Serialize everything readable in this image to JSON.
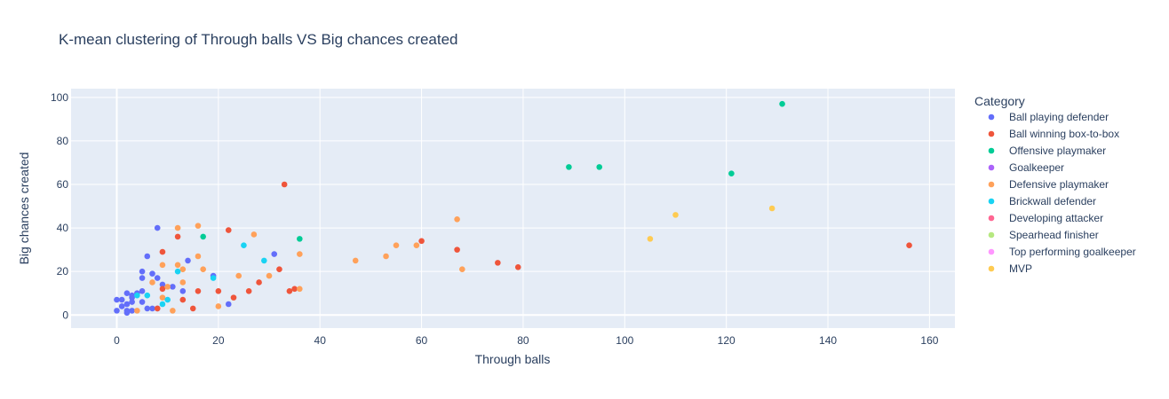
{
  "chart_data": {
    "type": "scatter",
    "title": "K-mean clustering of Through balls VS Big chances created",
    "xlabel": "Through balls",
    "ylabel": "Big chances created",
    "xlim": [
      -9,
      165
    ],
    "ylim": [
      -6,
      104
    ],
    "xticks": [
      0,
      20,
      40,
      60,
      80,
      100,
      120,
      140,
      160
    ],
    "yticks": [
      0,
      20,
      40,
      60,
      80,
      100
    ],
    "grid": true,
    "legend_title": "Category",
    "legend_position": "right",
    "series": [
      {
        "name": "Ball playing defender",
        "color": "#636efa",
        "points": [
          [
            0,
            2
          ],
          [
            0,
            7
          ],
          [
            1,
            4
          ],
          [
            1,
            7
          ],
          [
            2,
            1
          ],
          [
            2,
            2
          ],
          [
            2,
            5
          ],
          [
            2,
            10
          ],
          [
            3,
            2
          ],
          [
            3,
            6
          ],
          [
            3,
            8
          ],
          [
            3,
            9
          ],
          [
            4,
            10
          ],
          [
            5,
            6
          ],
          [
            5,
            11
          ],
          [
            5,
            17
          ],
          [
            5,
            20
          ],
          [
            6,
            3
          ],
          [
            6,
            27
          ],
          [
            7,
            3
          ],
          [
            7,
            19
          ],
          [
            8,
            3
          ],
          [
            8,
            17
          ],
          [
            8,
            40
          ],
          [
            9,
            14
          ],
          [
            11,
            13
          ],
          [
            13,
            11
          ],
          [
            14,
            25
          ],
          [
            19,
            18
          ],
          [
            22,
            5
          ],
          [
            31,
            28
          ]
        ]
      },
      {
        "name": "Ball winning box-to-box",
        "color": "#ef553b",
        "points": [
          [
            8,
            3
          ],
          [
            9,
            12
          ],
          [
            9,
            29
          ],
          [
            12,
            36
          ],
          [
            13,
            7
          ],
          [
            15,
            3
          ],
          [
            16,
            11
          ],
          [
            20,
            11
          ],
          [
            22,
            39
          ],
          [
            23,
            8
          ],
          [
            26,
            11
          ],
          [
            28,
            15
          ],
          [
            32,
            21
          ],
          [
            33,
            60
          ],
          [
            34,
            11
          ],
          [
            35,
            12
          ],
          [
            60,
            34
          ],
          [
            67,
            30
          ],
          [
            75,
            24
          ],
          [
            79,
            22
          ],
          [
            156,
            32
          ]
        ]
      },
      {
        "name": "Offensive playmaker",
        "color": "#00cc96",
        "points": [
          [
            17,
            36
          ],
          [
            36,
            35
          ],
          [
            89,
            68
          ],
          [
            95,
            68
          ],
          [
            121,
            65
          ],
          [
            131,
            97
          ]
        ]
      },
      {
        "name": "Goalkeeper",
        "color": "#ab63fa",
        "points": []
      },
      {
        "name": "Defensive playmaker",
        "color": "#ffa15a",
        "points": [
          [
            4,
            2
          ],
          [
            7,
            15
          ],
          [
            9,
            8
          ],
          [
            9,
            23
          ],
          [
            10,
            13
          ],
          [
            11,
            2
          ],
          [
            12,
            23
          ],
          [
            12,
            40
          ],
          [
            13,
            15
          ],
          [
            13,
            21
          ],
          [
            16,
            27
          ],
          [
            16,
            41
          ],
          [
            17,
            21
          ],
          [
            20,
            4
          ],
          [
            24,
            18
          ],
          [
            27,
            37
          ],
          [
            30,
            18
          ],
          [
            36,
            12
          ],
          [
            36,
            28
          ],
          [
            47,
            25
          ],
          [
            53,
            27
          ],
          [
            55,
            32
          ],
          [
            59,
            32
          ],
          [
            67,
            44
          ],
          [
            68,
            21
          ]
        ]
      },
      {
        "name": "Brickwall defender",
        "color": "#19d3f3",
        "points": [
          [
            4,
            9
          ],
          [
            6,
            9
          ],
          [
            9,
            5
          ],
          [
            10,
            7
          ],
          [
            12,
            20
          ],
          [
            19,
            17
          ],
          [
            25,
            32
          ],
          [
            29,
            25
          ]
        ]
      },
      {
        "name": "Developing attacker",
        "color": "#ff6692",
        "points": []
      },
      {
        "name": "Spearhead finisher",
        "color": "#b6e880",
        "points": []
      },
      {
        "name": "Top performing goalkeeper",
        "color": "#ff97ff",
        "points": []
      },
      {
        "name": "MVP",
        "color": "#fecb52",
        "points": [
          [
            105,
            35
          ],
          [
            110,
            46
          ],
          [
            129,
            49
          ]
        ]
      }
    ]
  }
}
